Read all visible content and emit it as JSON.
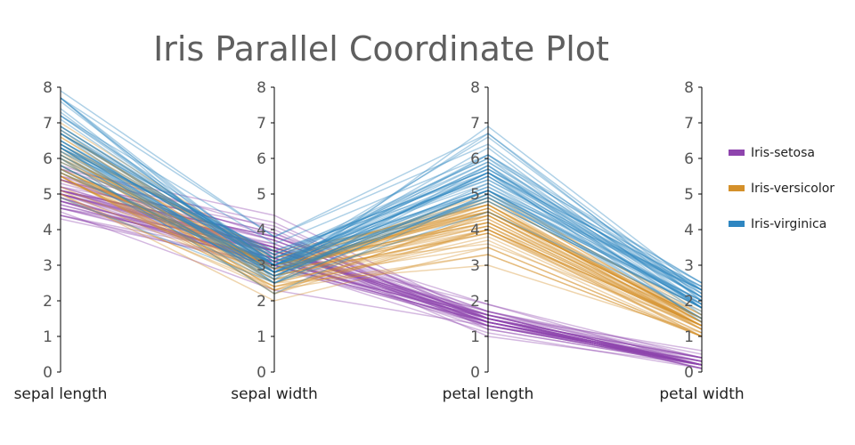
{
  "chart_data": {
    "type": "parallel-coordinates",
    "title": "Iris Parallel Coordinate Plot",
    "axes": [
      "sepal length",
      "sepal width",
      "petal length",
      "petal width"
    ],
    "range": [
      0,
      8
    ],
    "ticks": [
      "0",
      "1",
      "2",
      "3",
      "4",
      "5",
      "6",
      "7",
      "8"
    ],
    "legend_position": "right",
    "series": [
      {
        "name": "Iris-setosa",
        "color": "#8e44ad",
        "rows": [
          [
            5.1,
            3.5,
            1.4,
            0.2
          ],
          [
            4.9,
            3.0,
            1.4,
            0.2
          ],
          [
            4.7,
            3.2,
            1.3,
            0.2
          ],
          [
            4.6,
            3.1,
            1.5,
            0.2
          ],
          [
            5.0,
            3.6,
            1.4,
            0.2
          ],
          [
            5.4,
            3.9,
            1.7,
            0.4
          ],
          [
            4.6,
            3.4,
            1.4,
            0.3
          ],
          [
            5.0,
            3.4,
            1.5,
            0.2
          ],
          [
            4.4,
            2.9,
            1.4,
            0.2
          ],
          [
            4.9,
            3.1,
            1.5,
            0.1
          ],
          [
            5.4,
            3.7,
            1.5,
            0.2
          ],
          [
            4.8,
            3.4,
            1.6,
            0.2
          ],
          [
            4.8,
            3.0,
            1.4,
            0.1
          ],
          [
            4.3,
            3.0,
            1.1,
            0.1
          ],
          [
            5.8,
            4.0,
            1.2,
            0.2
          ],
          [
            5.7,
            4.4,
            1.5,
            0.4
          ],
          [
            5.4,
            3.9,
            1.3,
            0.4
          ],
          [
            5.1,
            3.5,
            1.4,
            0.3
          ],
          [
            5.7,
            3.8,
            1.7,
            0.3
          ],
          [
            5.1,
            3.8,
            1.5,
            0.3
          ],
          [
            5.4,
            3.4,
            1.7,
            0.2
          ],
          [
            5.1,
            3.7,
            1.5,
            0.4
          ],
          [
            4.6,
            3.6,
            1.0,
            0.2
          ],
          [
            5.1,
            3.3,
            1.7,
            0.5
          ],
          [
            4.8,
            3.4,
            1.9,
            0.2
          ],
          [
            5.0,
            3.0,
            1.6,
            0.2
          ],
          [
            5.0,
            3.4,
            1.6,
            0.4
          ],
          [
            5.2,
            3.5,
            1.5,
            0.2
          ],
          [
            5.2,
            3.4,
            1.4,
            0.2
          ],
          [
            4.7,
            3.2,
            1.6,
            0.2
          ],
          [
            4.8,
            3.1,
            1.6,
            0.2
          ],
          [
            5.4,
            3.4,
            1.5,
            0.4
          ],
          [
            5.2,
            4.1,
            1.5,
            0.1
          ],
          [
            5.5,
            4.2,
            1.4,
            0.2
          ],
          [
            4.9,
            3.1,
            1.5,
            0.1
          ],
          [
            5.0,
            3.2,
            1.2,
            0.2
          ],
          [
            5.5,
            3.5,
            1.3,
            0.2
          ],
          [
            4.4,
            3.0,
            1.3,
            0.2
          ],
          [
            5.1,
            3.4,
            1.5,
            0.2
          ],
          [
            5.0,
            3.5,
            1.3,
            0.3
          ],
          [
            4.5,
            2.3,
            1.3,
            0.3
          ],
          [
            4.4,
            3.2,
            1.3,
            0.2
          ],
          [
            5.0,
            3.5,
            1.6,
            0.6
          ],
          [
            5.1,
            3.8,
            1.9,
            0.4
          ],
          [
            4.8,
            3.0,
            1.4,
            0.3
          ],
          [
            5.1,
            3.8,
            1.6,
            0.2
          ],
          [
            4.6,
            3.2,
            1.4,
            0.2
          ],
          [
            5.3,
            3.7,
            1.5,
            0.2
          ],
          [
            5.0,
            3.3,
            1.4,
            0.2
          ]
        ]
      },
      {
        "name": "Iris-versicolor",
        "color": "#d4902a",
        "rows": [
          [
            7.0,
            3.2,
            4.7,
            1.4
          ],
          [
            6.4,
            3.2,
            4.5,
            1.5
          ],
          [
            6.9,
            3.1,
            4.9,
            1.5
          ],
          [
            5.5,
            2.3,
            4.0,
            1.3
          ],
          [
            6.5,
            2.8,
            4.6,
            1.5
          ],
          [
            5.7,
            2.8,
            4.5,
            1.3
          ],
          [
            6.3,
            3.3,
            4.7,
            1.6
          ],
          [
            4.9,
            2.4,
            3.3,
            1.0
          ],
          [
            6.6,
            2.9,
            4.6,
            1.3
          ],
          [
            5.2,
            2.7,
            3.9,
            1.4
          ],
          [
            5.0,
            2.0,
            3.5,
            1.0
          ],
          [
            5.9,
            3.0,
            4.2,
            1.5
          ],
          [
            6.0,
            2.2,
            4.0,
            1.0
          ],
          [
            6.1,
            2.9,
            4.7,
            1.4
          ],
          [
            5.6,
            2.9,
            3.6,
            1.3
          ],
          [
            6.7,
            3.1,
            4.4,
            1.4
          ],
          [
            5.6,
            3.0,
            4.5,
            1.5
          ],
          [
            5.8,
            2.7,
            4.1,
            1.0
          ],
          [
            6.2,
            2.2,
            4.5,
            1.5
          ],
          [
            5.6,
            2.5,
            3.9,
            1.1
          ],
          [
            5.9,
            3.2,
            4.8,
            1.8
          ],
          [
            6.1,
            2.8,
            4.0,
            1.3
          ],
          [
            6.3,
            2.5,
            4.9,
            1.5
          ],
          [
            6.1,
            2.8,
            4.7,
            1.2
          ],
          [
            6.4,
            2.9,
            4.3,
            1.3
          ],
          [
            6.6,
            3.0,
            4.4,
            1.4
          ],
          [
            6.8,
            2.8,
            4.8,
            1.4
          ],
          [
            6.7,
            3.0,
            5.0,
            1.7
          ],
          [
            6.0,
            2.9,
            4.5,
            1.5
          ],
          [
            5.7,
            2.6,
            3.5,
            1.0
          ],
          [
            5.5,
            2.4,
            3.8,
            1.1
          ],
          [
            5.5,
            2.4,
            3.7,
            1.0
          ],
          [
            5.8,
            2.7,
            3.9,
            1.2
          ],
          [
            6.0,
            2.7,
            5.1,
            1.6
          ],
          [
            5.4,
            3.0,
            4.5,
            1.5
          ],
          [
            6.0,
            3.4,
            4.5,
            1.6
          ],
          [
            6.7,
            3.1,
            4.7,
            1.5
          ],
          [
            6.3,
            2.3,
            4.4,
            1.3
          ],
          [
            5.6,
            3.0,
            4.1,
            1.3
          ],
          [
            5.5,
            2.5,
            4.0,
            1.3
          ],
          [
            5.5,
            2.6,
            4.4,
            1.2
          ],
          [
            6.1,
            3.0,
            4.6,
            1.4
          ],
          [
            5.8,
            2.6,
            4.0,
            1.2
          ],
          [
            5.0,
            2.3,
            3.3,
            1.0
          ],
          [
            5.6,
            2.7,
            4.2,
            1.3
          ],
          [
            5.7,
            3.0,
            4.2,
            1.2
          ],
          [
            5.7,
            2.9,
            4.2,
            1.3
          ],
          [
            6.2,
            2.9,
            4.3,
            1.3
          ],
          [
            5.1,
            2.5,
            3.0,
            1.1
          ],
          [
            5.7,
            2.8,
            4.1,
            1.3
          ]
        ]
      },
      {
        "name": "Iris-virginica",
        "color": "#2e86c1",
        "rows": [
          [
            6.3,
            3.3,
            6.0,
            2.5
          ],
          [
            5.8,
            2.7,
            5.1,
            1.9
          ],
          [
            7.1,
            3.0,
            5.9,
            2.1
          ],
          [
            6.3,
            2.9,
            5.6,
            1.8
          ],
          [
            6.5,
            3.0,
            5.8,
            2.2
          ],
          [
            7.6,
            3.0,
            6.6,
            2.1
          ],
          [
            4.9,
            2.5,
            4.5,
            1.7
          ],
          [
            7.3,
            2.9,
            6.3,
            1.8
          ],
          [
            6.7,
            2.5,
            5.8,
            1.8
          ],
          [
            7.2,
            3.6,
            6.1,
            2.5
          ],
          [
            6.5,
            3.2,
            5.1,
            2.0
          ],
          [
            6.4,
            2.7,
            5.3,
            1.9
          ],
          [
            6.8,
            3.0,
            5.5,
            2.1
          ],
          [
            5.7,
            2.5,
            5.0,
            2.0
          ],
          [
            5.8,
            2.8,
            5.1,
            2.4
          ],
          [
            6.4,
            3.2,
            5.3,
            2.3
          ],
          [
            6.5,
            3.0,
            5.5,
            1.8
          ],
          [
            7.7,
            3.8,
            6.7,
            2.2
          ],
          [
            7.7,
            2.6,
            6.9,
            2.3
          ],
          [
            6.0,
            2.2,
            5.0,
            1.5
          ],
          [
            6.9,
            3.2,
            5.7,
            2.3
          ],
          [
            5.6,
            2.8,
            4.9,
            2.0
          ],
          [
            7.7,
            2.8,
            6.7,
            2.0
          ],
          [
            6.3,
            2.7,
            4.9,
            1.8
          ],
          [
            6.7,
            3.3,
            5.7,
            2.1
          ],
          [
            7.2,
            3.2,
            6.0,
            1.8
          ],
          [
            6.2,
            2.8,
            4.8,
            1.8
          ],
          [
            6.1,
            3.0,
            4.9,
            1.8
          ],
          [
            6.4,
            2.8,
            5.6,
            2.1
          ],
          [
            7.2,
            3.0,
            5.8,
            1.6
          ],
          [
            7.4,
            2.8,
            6.1,
            1.9
          ],
          [
            7.9,
            3.8,
            6.4,
            2.0
          ],
          [
            6.4,
            2.8,
            5.6,
            2.2
          ],
          [
            6.3,
            2.8,
            5.1,
            1.5
          ],
          [
            6.1,
            2.6,
            5.6,
            1.4
          ],
          [
            7.7,
            3.0,
            6.1,
            2.3
          ],
          [
            6.3,
            3.4,
            5.6,
            2.4
          ],
          [
            6.4,
            3.1,
            5.5,
            1.8
          ],
          [
            6.0,
            3.0,
            4.8,
            1.8
          ],
          [
            6.9,
            3.1,
            5.4,
            2.1
          ],
          [
            6.7,
            3.1,
            5.6,
            2.4
          ],
          [
            6.9,
            3.1,
            5.1,
            2.3
          ],
          [
            5.8,
            2.7,
            5.1,
            1.9
          ],
          [
            6.8,
            3.2,
            5.9,
            2.3
          ],
          [
            6.7,
            3.3,
            5.7,
            2.5
          ],
          [
            6.7,
            3.0,
            5.2,
            2.3
          ],
          [
            6.3,
            2.5,
            5.0,
            1.9
          ],
          [
            6.5,
            3.0,
            5.2,
            2.0
          ],
          [
            6.2,
            3.4,
            5.4,
            2.3
          ],
          [
            5.9,
            3.0,
            5.1,
            1.8
          ]
        ]
      }
    ]
  }
}
